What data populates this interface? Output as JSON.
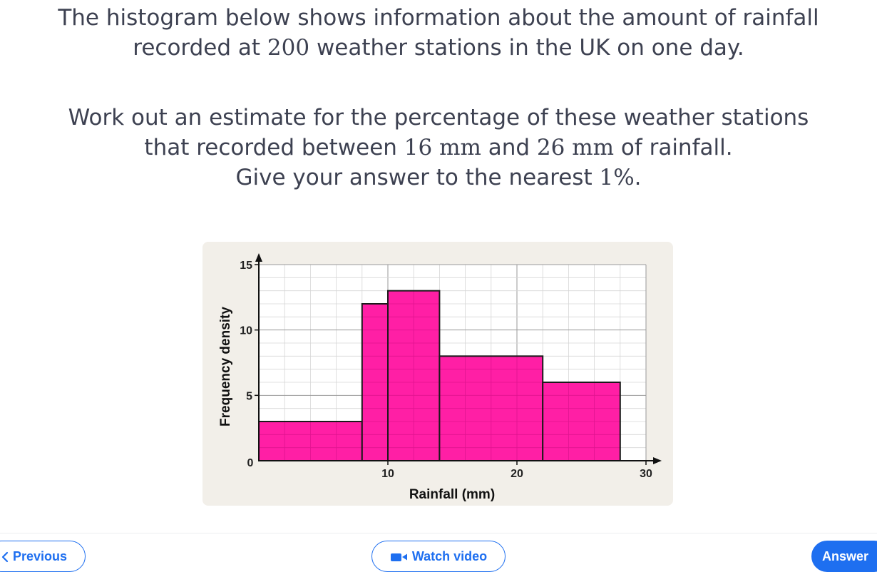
{
  "question": {
    "line1": "The histogram below shows information about the amount of rainfall",
    "line2_pre": "recorded at ",
    "line2_num": "200",
    "line2_post": " weather stations in the UK on one day.",
    "line3": "Work out an estimate for the percentage of these weather stations",
    "line4_pre": "that recorded between ",
    "line4_a": "16 mm",
    "line4_mid": " and ",
    "line4_b": "26 mm",
    "line4_post": " of rainfall.",
    "line5_pre": "Give your answer to the nearest ",
    "line5_val": "1%",
    "line5_post": "."
  },
  "chart_data": {
    "type": "bar",
    "variant": "histogram",
    "xlabel": "Rainfall (mm)",
    "ylabel": "Frequency density",
    "xlim": [
      0,
      30
    ],
    "ylim": [
      0,
      15
    ],
    "x_ticks": [
      0,
      10,
      20,
      30
    ],
    "y_ticks": [
      0,
      5,
      10,
      15
    ],
    "grid": true,
    "bins": [
      {
        "from": 0,
        "to": 8,
        "density": 3
      },
      {
        "from": 8,
        "to": 10,
        "density": 12
      },
      {
        "from": 10,
        "to": 14,
        "density": 13
      },
      {
        "from": 14,
        "to": 22,
        "density": 8
      },
      {
        "from": 22,
        "to": 28,
        "density": 6
      }
    ],
    "bar_color": "#ff1fa5",
    "card_color": "#f2efe9"
  },
  "nav": {
    "previous_label": "Previous",
    "watch_video_label": "Watch video",
    "answer_label": "Answer"
  },
  "colors": {
    "accent": "#1e6ff0",
    "text": "#3d4151"
  }
}
